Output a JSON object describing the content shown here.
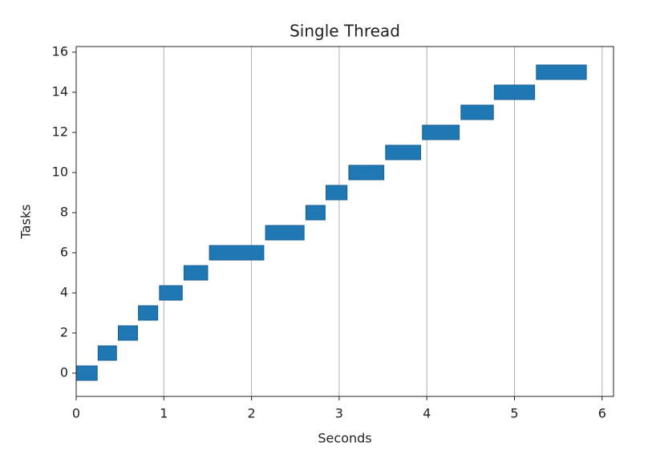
{
  "chart_data": {
    "type": "broken_barh",
    "title": "Single Thread",
    "xlabel": "Seconds",
    "ylabel": "Tasks",
    "color": "#1f77b4",
    "y": [
      0,
      1,
      2,
      3,
      4,
      5,
      6,
      7,
      8,
      9,
      10,
      11,
      12,
      13,
      14,
      15
    ],
    "starts": [
      0,
      0.25,
      0.48,
      0.71,
      0.95,
      1.23,
      1.52,
      2.16,
      2.62,
      2.85,
      3.11,
      3.53,
      3.95,
      4.39,
      4.77,
      5.25
    ],
    "durations": [
      0.24,
      0.21,
      0.22,
      0.22,
      0.26,
      0.27,
      0.62,
      0.44,
      0.22,
      0.24,
      0.4,
      0.4,
      0.42,
      0.37,
      0.46,
      0.57
    ],
    "xlim": [
      0,
      6.13
    ],
    "xticks": [
      0,
      1,
      2,
      3,
      4,
      5,
      6
    ],
    "ylim": [
      -1.16,
      16.28
    ],
    "yticks": [
      0,
      2,
      4,
      6,
      8,
      10,
      12,
      14,
      16
    ],
    "grid": "x"
  }
}
